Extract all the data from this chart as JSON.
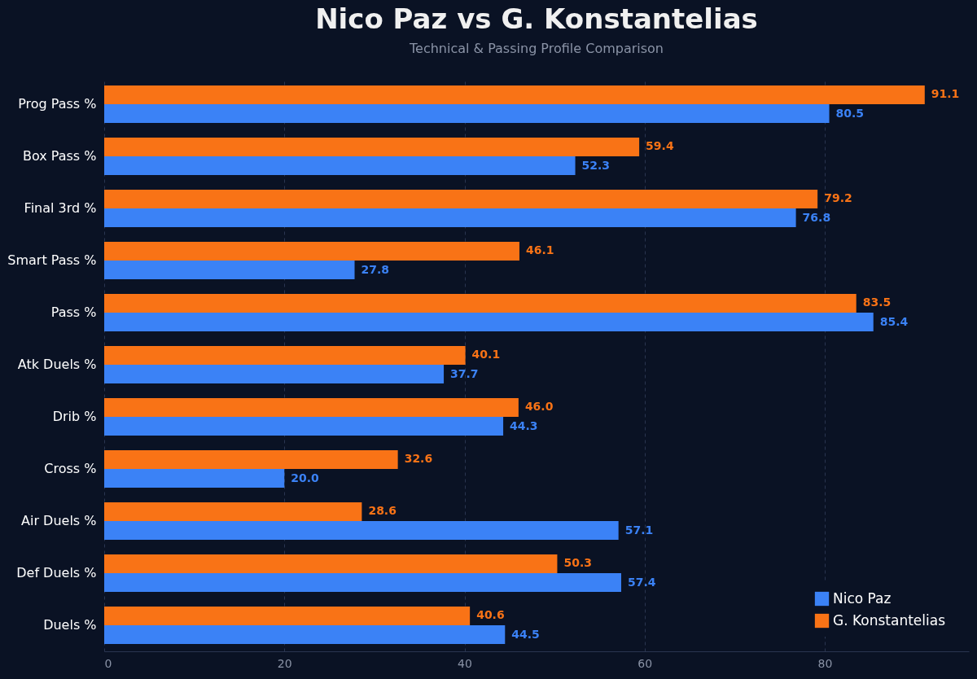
{
  "chart_data": {
    "type": "bar",
    "orientation": "horizontal",
    "title": "Nico Paz vs G. Konstantelias",
    "subtitle": "Technical & Passing Profile Comparison",
    "categories": [
      "Prog Pass %",
      "Box Pass %",
      "Final 3rd %",
      "Smart Pass %",
      "Pass %",
      "Atk Duels %",
      "Drib %",
      "Cross %",
      "Air Duels %",
      "Def Duels %",
      "Duels %"
    ],
    "series": [
      {
        "name": "Nico Paz",
        "color": "#3b82f6",
        "values": [
          80.5,
          52.3,
          76.8,
          27.8,
          85.4,
          37.7,
          44.3,
          20.0,
          57.1,
          57.4,
          44.5
        ],
        "value_labels": [
          "80.5",
          "52.3",
          "76.8",
          "27.8",
          "85.4",
          "37.7",
          "44.3",
          "20.0",
          "57.1",
          "57.4",
          "44.5"
        ]
      },
      {
        "name": "G. Konstantelias",
        "color": "#f97316",
        "values": [
          91.1,
          59.4,
          79.2,
          46.1,
          83.5,
          40.1,
          46.0,
          32.6,
          28.6,
          50.3,
          40.6
        ],
        "value_labels": [
          "91.1",
          "59.4",
          "79.2",
          "46.1",
          "83.5",
          "40.1",
          "46.0",
          "32.6",
          "28.6",
          "50.3",
          "40.6"
        ]
      }
    ],
    "xlim": [
      0,
      96
    ],
    "xticks": [
      0,
      20,
      40,
      60,
      80
    ],
    "grid": "x",
    "legend": "bottom right"
  }
}
